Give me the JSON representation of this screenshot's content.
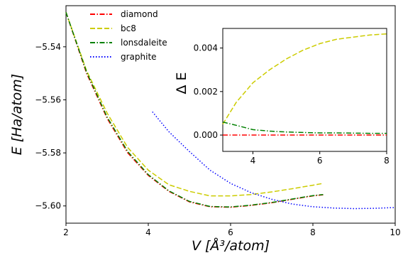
{
  "chart_data": [
    {
      "type": "line",
      "xlabel": "V [Å³/atom]",
      "ylabel": "E [Ha/atom]",
      "xlim": [
        2,
        10
      ],
      "ylim": [
        -5.6065,
        -5.5245
      ],
      "xticks": [
        2,
        4,
        6,
        8,
        10
      ],
      "xtick_labels": [
        "2",
        "4",
        "6",
        "8",
        "10"
      ],
      "yticks": [
        -5.54,
        -5.56,
        -5.58,
        -5.6
      ],
      "ytick_labels": [
        "−5.54",
        "−5.56",
        "−5.58",
        "−5.60"
      ],
      "legend": "top-left",
      "grid": false,
      "series": [
        {
          "name": "diamond",
          "color": "#ff0000",
          "style": "dashdot",
          "x": [
            2.0,
            2.5,
            3.0,
            3.5,
            4.0,
            4.5,
            5.0,
            5.5,
            6.0,
            6.5,
            7.0,
            7.5,
            8.0,
            8.25
          ],
          "y": [
            -5.527,
            -5.55,
            -5.567,
            -5.58,
            -5.5885,
            -5.5945,
            -5.5985,
            -5.6003,
            -5.6005,
            -5.5998,
            -5.5988,
            -5.5975,
            -5.5962,
            -5.5958
          ]
        },
        {
          "name": "bc8",
          "color": "#cccc00",
          "style": "dashed",
          "x": [
            2.0,
            2.5,
            3.0,
            3.5,
            4.0,
            4.5,
            5.0,
            5.5,
            6.0,
            6.5,
            7.0,
            7.5,
            8.0,
            8.25
          ],
          "y": [
            -5.527,
            -5.549,
            -5.565,
            -5.578,
            -5.5865,
            -5.592,
            -5.5945,
            -5.5962,
            -5.5962,
            -5.5957,
            -5.5947,
            -5.5935,
            -5.5922,
            -5.5915
          ]
        },
        {
          "name": "lonsdaleite",
          "color": "#008000",
          "style": "dashdot",
          "x": [
            2.0,
            2.5,
            3.0,
            3.5,
            4.0,
            4.5,
            5.0,
            5.5,
            6.0,
            6.5,
            7.0,
            7.5,
            8.0,
            8.25
          ],
          "y": [
            -5.527,
            -5.5495,
            -5.5665,
            -5.5795,
            -5.5882,
            -5.5943,
            -5.5983,
            -5.6002,
            -5.6004,
            -5.5997,
            -5.5987,
            -5.5974,
            -5.5961,
            -5.5957
          ]
        },
        {
          "name": "graphite",
          "color": "#0000ff",
          "style": "dotted",
          "x": [
            4.1,
            4.5,
            5.0,
            5.5,
            6.0,
            6.5,
            7.0,
            7.5,
            8.0,
            8.5,
            9.0,
            9.5,
            10.0
          ],
          "y": [
            -5.5645,
            -5.572,
            -5.5795,
            -5.5865,
            -5.5915,
            -5.595,
            -5.5975,
            -5.5993,
            -5.6003,
            -5.6008,
            -5.601,
            -5.6009,
            -5.6006
          ]
        }
      ]
    },
    {
      "type": "line",
      "xlabel": "",
      "ylabel": "Δ E",
      "xlim": [
        3.1,
        8.0
      ],
      "ylim": [
        -0.00075,
        0.0049
      ],
      "xticks": [
        4,
        6,
        8
      ],
      "xtick_labels": [
        "4",
        "6",
        "8"
      ],
      "yticks": [
        0.0,
        0.002,
        0.004
      ],
      "ytick_labels": [
        "0.000",
        "0.002",
        "0.004"
      ],
      "grid": false,
      "series": [
        {
          "name": "diamond",
          "color": "#ff0000",
          "style": "dashdot",
          "x": [
            3.1,
            8.0
          ],
          "y": [
            0.0,
            0.0
          ]
        },
        {
          "name": "bc8",
          "color": "#cccc00",
          "style": "dashed",
          "x": [
            3.1,
            3.5,
            4.0,
            4.5,
            5.0,
            5.5,
            6.0,
            6.5,
            7.0,
            7.5,
            8.0
          ],
          "y": [
            0.0005,
            0.0015,
            0.0024,
            0.003,
            0.0035,
            0.0039,
            0.0042,
            0.0044,
            0.0045,
            0.0046,
            0.00465
          ]
        },
        {
          "name": "lonsdaleite",
          "color": "#008000",
          "style": "dashdot",
          "x": [
            3.1,
            3.5,
            4.0,
            4.5,
            5.0,
            5.5,
            6.0,
            6.5,
            7.0,
            7.5,
            8.0
          ],
          "y": [
            0.0006,
            0.00045,
            0.00025,
            0.00018,
            0.00014,
            0.00012,
            0.0001,
            0.0001,
            9e-05,
            8e-05,
            8e-05
          ]
        }
      ]
    }
  ]
}
